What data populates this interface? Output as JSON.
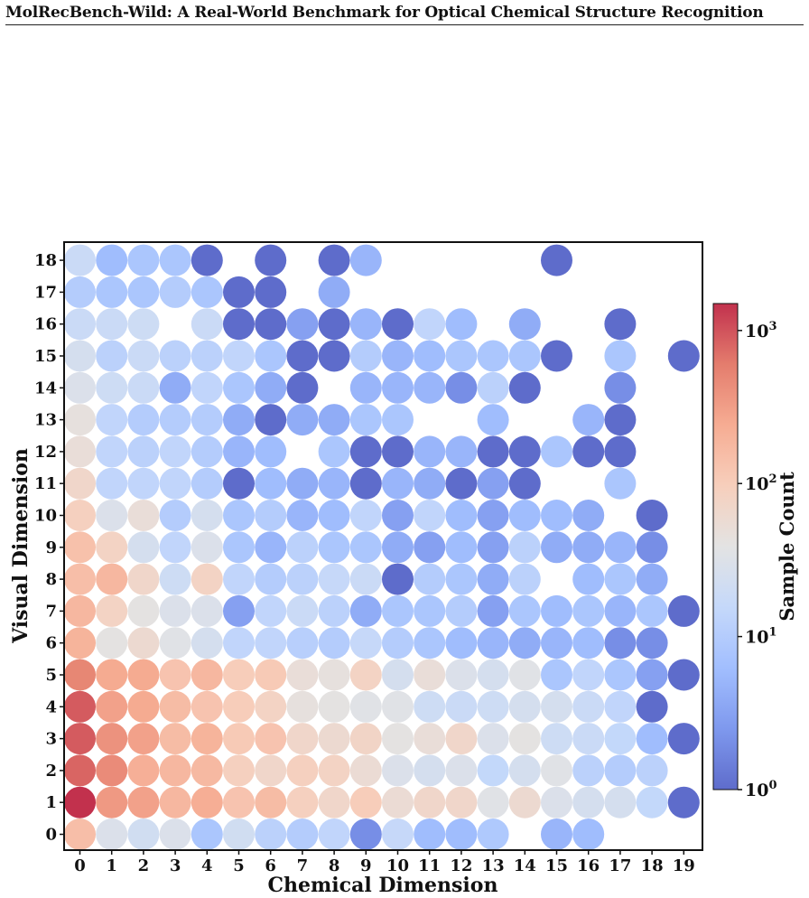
{
  "header": {
    "title": "MolRecBench-Wild: A Real-World Benchmark for Optical Chemical Structure Recognition"
  },
  "chart_data": {
    "type": "scatter",
    "title": "",
    "xlabel": "Chemical Dimension",
    "ylabel": "Visual Dimension",
    "x_ticks": [
      0,
      1,
      2,
      3,
      4,
      5,
      6,
      7,
      8,
      9,
      10,
      11,
      12,
      13,
      14,
      15,
      16,
      17,
      18,
      19
    ],
    "y_ticks": [
      0,
      1,
      2,
      3,
      4,
      5,
      6,
      7,
      8,
      9,
      10,
      11,
      12,
      13,
      14,
      15,
      16,
      17,
      18
    ],
    "colorbar": {
      "label": "Sample Count",
      "scale": "log",
      "range": [
        1,
        1500
      ],
      "colormap": "coolwarm",
      "ticks": [
        {
          "value": 1,
          "base": "10",
          "exp": "0"
        },
        {
          "value": 10,
          "base": "10",
          "exp": "1"
        },
        {
          "value": 100,
          "base": "10",
          "exp": "2"
        },
        {
          "value": 1000,
          "base": "10",
          "exp": "3"
        }
      ]
    },
    "grid": false,
    "rows": [
      {
        "y": 0,
        "counts": [
          150,
          30,
          22,
          30,
          8,
          22,
          12,
          10,
          14,
          2,
          16,
          6,
          6,
          9,
          null,
          5,
          6,
          null,
          null,
          null
        ]
      },
      {
        "y": 1,
        "counts": [
          1500,
          350,
          300,
          180,
          230,
          130,
          160,
          90,
          70,
          100,
          55,
          70,
          70,
          35,
          60,
          30,
          25,
          25,
          15,
          1
        ]
      },
      {
        "y": 2,
        "counts": [
          800,
          450,
          220,
          180,
          170,
          90,
          70,
          90,
          80,
          55,
          30,
          25,
          30,
          15,
          25,
          35,
          12,
          10,
          12,
          null
        ]
      },
      {
        "y": 3,
        "counts": [
          900,
          400,
          300,
          160,
          200,
          110,
          130,
          70,
          60,
          75,
          40,
          50,
          70,
          30,
          40,
          20,
          18,
          15,
          6,
          1
        ]
      },
      {
        "y": 4,
        "counts": [
          900,
          300,
          250,
          160,
          130,
          100,
          80,
          45,
          40,
          35,
          35,
          20,
          18,
          20,
          25,
          25,
          18,
          14,
          1,
          null
        ]
      },
      {
        "y": 5,
        "counts": [
          500,
          250,
          250,
          130,
          180,
          100,
          110,
          50,
          45,
          80,
          25,
          50,
          30,
          25,
          35,
          8,
          14,
          8,
          3,
          1
        ]
      },
      {
        "y": 6,
        "counts": [
          200,
          40,
          60,
          35,
          25,
          14,
          14,
          11,
          10,
          16,
          10,
          8,
          6,
          5,
          4,
          5,
          6,
          2,
          2,
          null
        ]
      },
      {
        "y": 7,
        "counts": [
          180,
          80,
          40,
          30,
          30,
          3,
          14,
          18,
          12,
          4,
          8,
          8,
          10,
          3,
          8,
          6,
          8,
          5,
          8,
          1
        ]
      },
      {
        "y": 8,
        "counts": [
          150,
          180,
          70,
          20,
          80,
          14,
          10,
          12,
          16,
          18,
          1,
          10,
          8,
          4,
          12,
          null,
          6,
          8,
          4,
          null
        ]
      },
      {
        "y": 9,
        "counts": [
          140,
          80,
          25,
          14,
          30,
          8,
          5,
          12,
          8,
          8,
          4,
          3,
          6,
          3,
          12,
          4,
          4,
          5,
          2,
          null
        ]
      },
      {
        "y": 10,
        "counts": [
          90,
          30,
          50,
          10,
          25,
          8,
          10,
          5,
          6,
          14,
          3,
          14,
          6,
          3,
          6,
          6,
          4,
          null,
          1,
          null
        ]
      },
      {
        "y": 11,
        "counts": [
          70,
          14,
          14,
          14,
          10,
          1,
          6,
          4,
          5,
          1,
          5,
          4,
          1,
          3,
          1,
          null,
          null,
          8,
          null,
          null
        ]
      },
      {
        "y": 12,
        "counts": [
          50,
          14,
          12,
          14,
          10,
          5,
          6,
          null,
          8,
          1,
          1,
          5,
          5,
          1,
          1,
          8,
          1,
          1,
          null,
          null
        ]
      },
      {
        "y": 13,
        "counts": [
          45,
          14,
          10,
          10,
          10,
          4,
          1,
          4,
          4,
          8,
          8,
          null,
          null,
          6,
          null,
          null,
          5,
          1,
          null,
          null
        ]
      },
      {
        "y": 14,
        "counts": [
          30,
          20,
          18,
          4,
          14,
          8,
          4,
          1,
          null,
          5,
          5,
          5,
          2,
          12,
          1,
          null,
          null,
          2,
          null,
          null
        ]
      },
      {
        "y": 15,
        "counts": [
          25,
          12,
          18,
          12,
          12,
          14,
          8,
          1,
          1,
          10,
          5,
          6,
          8,
          8,
          8,
          1,
          null,
          8,
          null,
          1
        ]
      },
      {
        "y": 16,
        "counts": [
          18,
          18,
          20,
          null,
          18,
          1,
          1,
          3,
          1,
          5,
          1,
          14,
          6,
          null,
          4,
          null,
          null,
          1,
          null,
          null
        ]
      },
      {
        "y": 17,
        "counts": [
          10,
          8,
          8,
          10,
          8,
          1,
          1,
          null,
          4,
          null,
          null,
          null,
          null,
          null,
          null,
          null,
          null,
          null,
          null,
          null
        ]
      },
      {
        "y": 18,
        "counts": [
          18,
          6,
          8,
          8,
          1,
          null,
          1,
          null,
          1,
          5,
          null,
          null,
          null,
          null,
          null,
          1,
          null,
          null,
          null,
          null
        ]
      }
    ]
  }
}
